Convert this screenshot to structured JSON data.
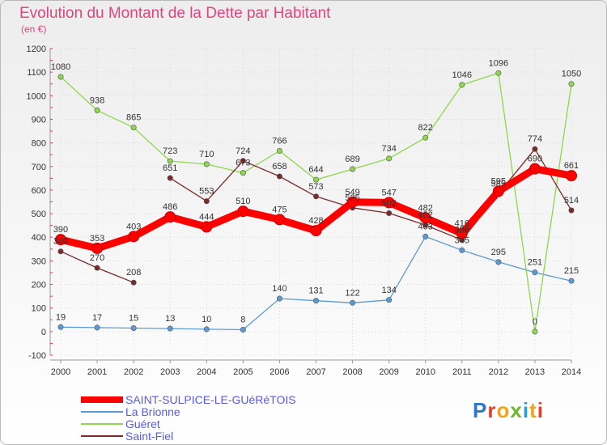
{
  "title": "Evolution du Montant de la Dette par Habitant",
  "unit_label": "(en €)",
  "logo": {
    "text": "Proxiti",
    "letter_colors": [
      "#2f78c8",
      "#e2402f",
      "#f0a41b",
      "#6cb82e",
      "#2f9ad8",
      "#f0a41b",
      "#e2402f"
    ]
  },
  "chart_data": {
    "type": "line",
    "title": "Evolution du Montant de la Dette par Habitant",
    "ylabel": "(en €)",
    "xlabel": "",
    "x": [
      "2000",
      "2001",
      "2002",
      "2003",
      "2004",
      "2005",
      "2006",
      "2007",
      "2008",
      "2009",
      "2010",
      "2011",
      "2012",
      "2013",
      "2014"
    ],
    "ylim": [
      -100,
      1200
    ],
    "yticks": [
      -100,
      0,
      100,
      200,
      300,
      400,
      500,
      600,
      700,
      800,
      900,
      1000,
      1100,
      1200
    ],
    "grid": true,
    "legend_position": "bottom-left",
    "series": [
      {
        "name": "SAINT-SULPICE-LE-GUéRéTOIS",
        "color": "#ff0000",
        "bold": true,
        "values": [
          390,
          353,
          403,
          486,
          444,
          510,
          475,
          428,
          549,
          547,
          482,
          416,
          595,
          690,
          661
        ],
        "labels": [
          "390",
          "353",
          "403",
          "486",
          "444",
          "510",
          "475",
          "428",
          "549",
          "547",
          "482",
          "416",
          "595",
          "690",
          "661"
        ]
      },
      {
        "name": "La Brionne",
        "color": "#5b9bd5",
        "values": [
          19,
          17,
          15,
          13,
          10,
          8,
          140,
          131,
          122,
          134,
          403,
          345,
          295,
          251,
          215
        ],
        "labels": [
          "19",
          "17",
          "15",
          "13",
          "10",
          "8",
          "140",
          "131",
          "122",
          "134",
          "403",
          "345",
          "295",
          "251",
          "215"
        ]
      },
      {
        "name": "Guéret",
        "color": "#8ed64c",
        "values": [
          1080,
          938,
          865,
          723,
          710,
          673,
          766,
          644,
          689,
          734,
          822,
          1046,
          1096,
          0,
          1050
        ],
        "labels": [
          "1080",
          "938",
          "865",
          "723",
          "710",
          "673",
          "766",
          "644",
          "689",
          "734",
          "822",
          "1046",
          "1096",
          "0",
          "1050"
        ]
      },
      {
        "name": "Saint-Fiel",
        "color": "#7a2a2a",
        "values": [
          340,
          270,
          208,
          651,
          553,
          724,
          658,
          573,
          525,
          502,
          452,
          388,
          585,
          774,
          514
        ],
        "segments": [
          [
            0,
            2
          ],
          [
            3,
            14
          ]
        ],
        "labels": [
          "340",
          "270",
          "208",
          "651",
          "553",
          "724",
          "658",
          "573",
          "525",
          "502",
          "452",
          "388",
          "585",
          "774",
          "514"
        ]
      }
    ]
  }
}
